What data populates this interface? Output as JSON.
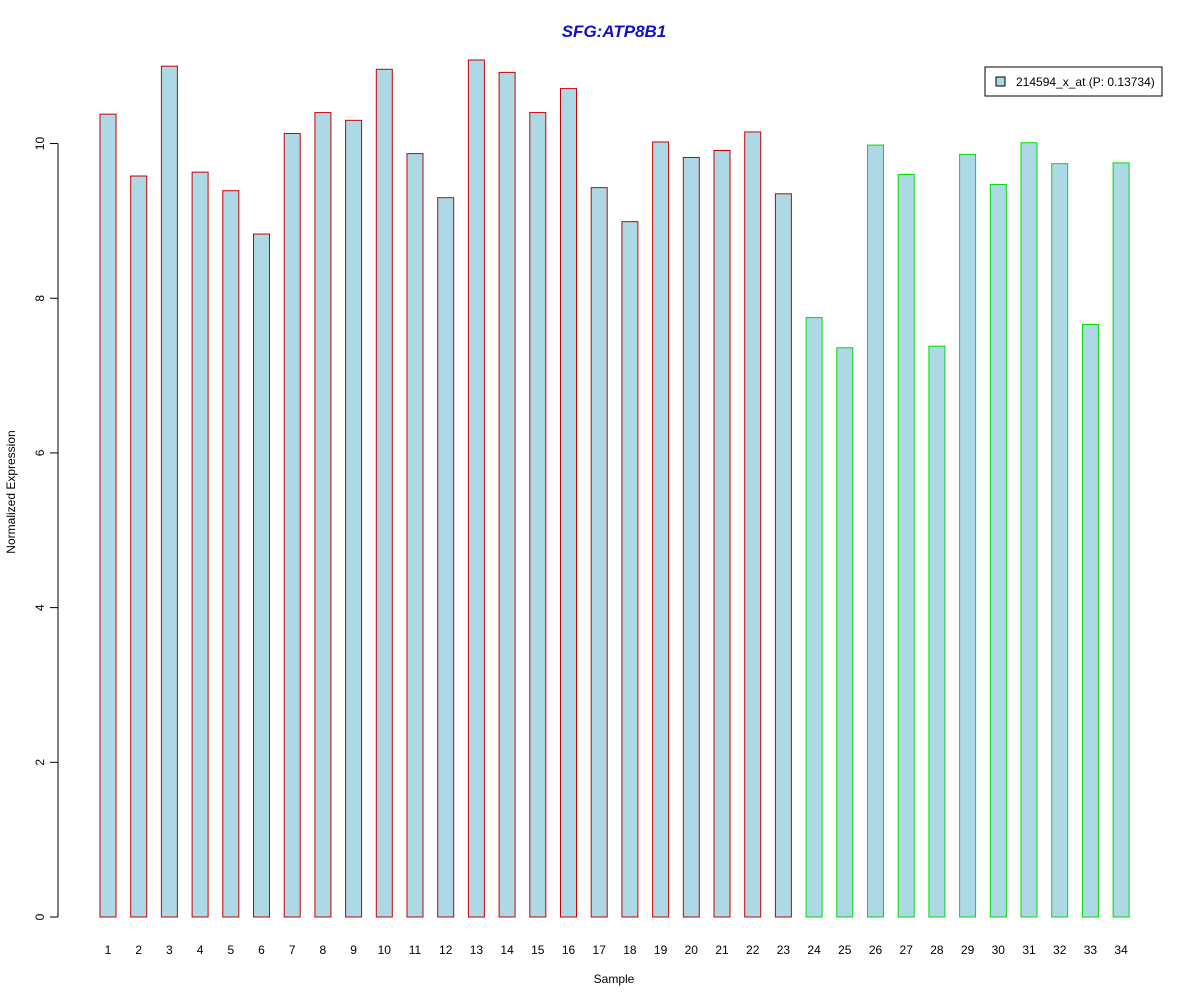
{
  "chart_data": {
    "type": "bar",
    "title": "SFG:ATP8B1",
    "xlabel": "Sample",
    "ylabel": "Normalized Expression",
    "categories": [
      "1",
      "2",
      "3",
      "4",
      "5",
      "6",
      "7",
      "8",
      "9",
      "10",
      "11",
      "12",
      "13",
      "14",
      "15",
      "16",
      "17",
      "18",
      "19",
      "20",
      "21",
      "22",
      "23",
      "24",
      "25",
      "26",
      "27",
      "28",
      "29",
      "30",
      "31",
      "32",
      "33",
      "34"
    ],
    "series": [
      {
        "name": "214594_x_at (P: 0.13734)",
        "values": [
          10.38,
          9.58,
          11.0,
          9.63,
          9.39,
          8.83,
          10.13,
          10.4,
          10.3,
          10.96,
          9.87,
          9.3,
          11.08,
          10.92,
          10.4,
          10.71,
          9.43,
          8.99,
          10.02,
          9.82,
          9.91,
          10.15,
          9.35,
          7.75,
          7.36,
          9.98,
          9.6,
          7.38,
          9.86,
          9.47,
          10.01,
          9.74,
          7.66,
          9.75
        ]
      }
    ],
    "group_colors": [
      "#cc0000",
      "#cc0000",
      "#cc0000",
      "#cc0000",
      "#cc0000",
      "#cc0000",
      "#cc0000",
      "#cc0000",
      "#cc0000",
      "#cc0000",
      "#cc0000",
      "#cc0000",
      "#cc0000",
      "#cc0000",
      "#cc0000",
      "#cc0000",
      "#cc0000",
      "#cc0000",
      "#cc0000",
      "#cc0000",
      "#cc0000",
      "#cc0000",
      "#cc0000",
      "#00dd00",
      "#00dd00",
      "#00dd00",
      "#00dd00",
      "#00dd00",
      "#00dd00",
      "#00dd00",
      "#00dd00",
      "#00dd00",
      "#00dd00",
      "#00dd00"
    ],
    "bar_fill": "#add8e6",
    "title_color": "#1010cc",
    "yticks": [
      "0",
      "2",
      "4",
      "6",
      "8",
      "10"
    ],
    "ylim": [
      0,
      11.08
    ],
    "legend_position": "top-right",
    "grid": false
  }
}
